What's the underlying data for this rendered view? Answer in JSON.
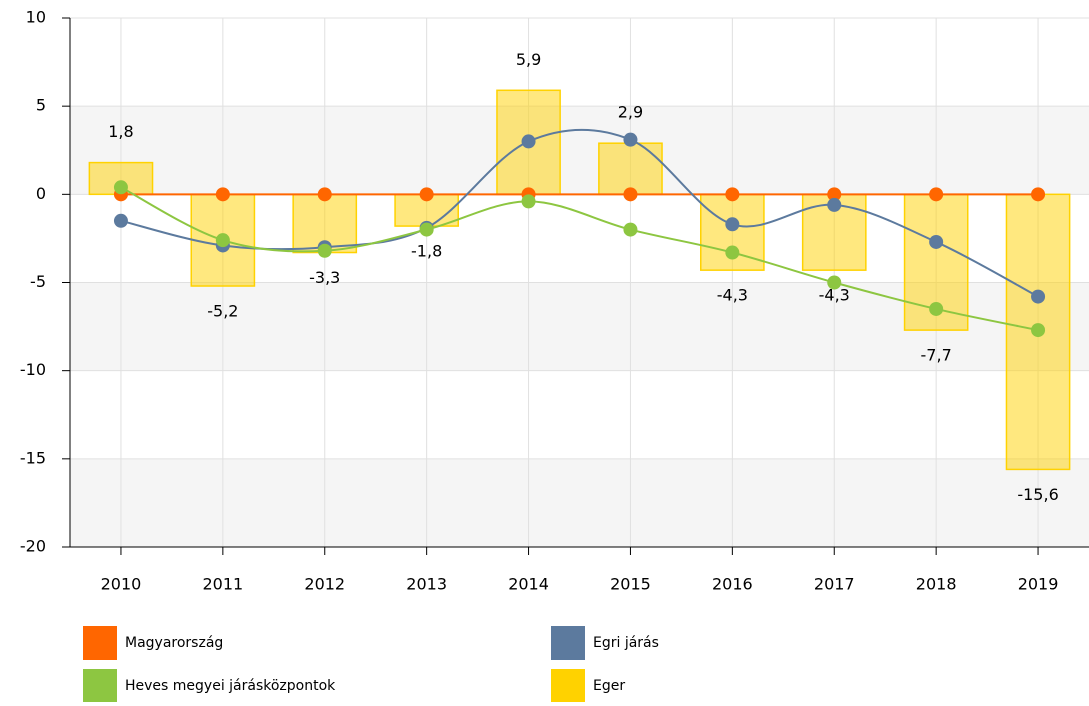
{
  "chart_data": {
    "type": "combo",
    "categories": [
      "2010",
      "2011",
      "2012",
      "2013",
      "2014",
      "2015",
      "2016",
      "2017",
      "2018",
      "2019"
    ],
    "series": [
      {
        "name": "Magyarország",
        "type": "line",
        "color": "#ff6600",
        "values": [
          0,
          0,
          0,
          0,
          0,
          0,
          0,
          0,
          0,
          0
        ]
      },
      {
        "name": "Egri járás",
        "type": "line",
        "color": "#5c7a9e",
        "values": [
          -1.5,
          -2.9,
          -3.0,
          -1.9,
          3.0,
          3.1,
          -1.7,
          -0.6,
          -2.7,
          -5.8
        ]
      },
      {
        "name": "Heves megyei járásközpontok",
        "type": "line",
        "color": "#8dc641",
        "values": [
          0.4,
          -2.6,
          -3.2,
          -2.0,
          -0.4,
          -2.0,
          -3.3,
          -5.0,
          -6.5,
          -7.7
        ]
      },
      {
        "name": "Eger",
        "type": "bar",
        "color": "#ffd200",
        "values": [
          1.8,
          -5.2,
          -3.3,
          -1.8,
          5.9,
          2.9,
          -4.3,
          -4.3,
          -7.7,
          -15.6
        ],
        "value_labels": [
          "1,8",
          "-5,2",
          "-3,3",
          "-1,8",
          "5,9",
          "2,9",
          "-4,3",
          "-4,3",
          "-7,7",
          "-15,6"
        ]
      }
    ],
    "ylim": [
      -20,
      10
    ],
    "yticks": [
      -20,
      -15,
      -10,
      -5,
      0,
      5,
      10
    ],
    "grid": true
  }
}
